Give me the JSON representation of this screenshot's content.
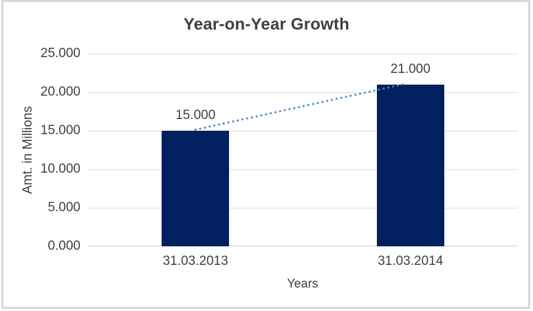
{
  "chart_data": {
    "type": "bar",
    "title": "Year-on-Year Growth",
    "categories": [
      "31.03.2013",
      "31.03.2014"
    ],
    "values": [
      15,
      21
    ],
    "data_labels": [
      "15.000",
      "21.000"
    ],
    "xlabel": "Years",
    "ylabel": "Amt. in Millions",
    "ylim": [
      0,
      25
    ],
    "ytick_step": 5,
    "ytick_labels": [
      "0.000",
      "5.000",
      "10.000",
      "15.000",
      "20.000",
      "25.000"
    ],
    "grid": true,
    "legend_position": "none",
    "trendline": {
      "style": "dotted",
      "connects": "bar-tops",
      "from_value": 15,
      "to_value": 21
    }
  },
  "colors": {
    "bar": "#002060",
    "trendline": "#4e82c4",
    "gridline": "#dcdcdc",
    "axis_line": "#cfcfcf",
    "label_text": "#404040",
    "title_text": "#3f3f3f",
    "frame_border": "#d7d7d7"
  }
}
